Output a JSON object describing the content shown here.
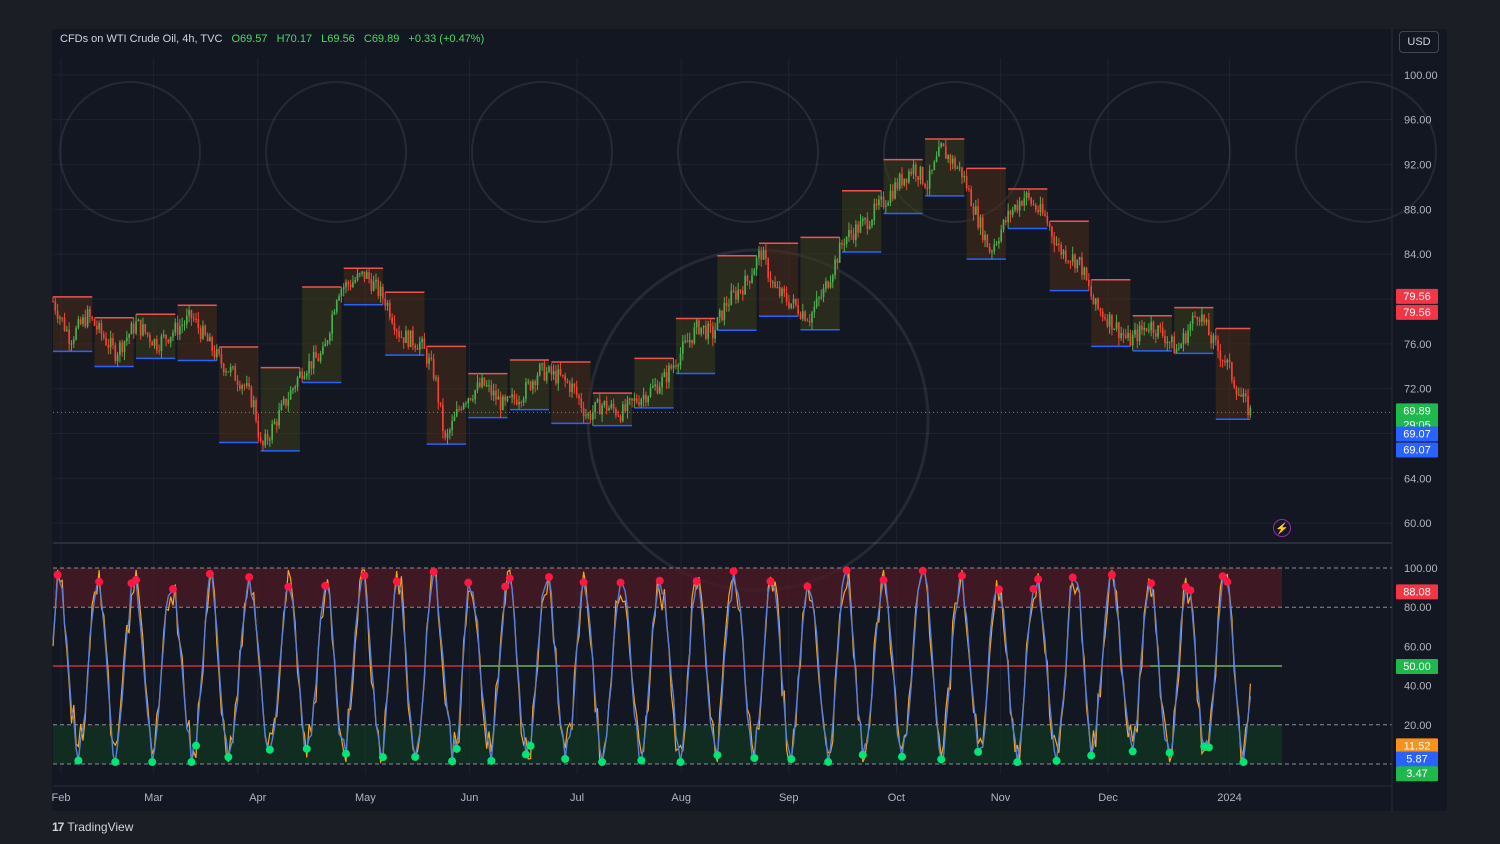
{
  "header": {
    "symbol": "CFDs on WTI Crude Oil, 4h, TVC",
    "open": "O69.57",
    "high": "H70.17",
    "low": "L69.56",
    "close": "C69.89",
    "change": "+0.33 (+0.47%)"
  },
  "currency": "USD",
  "brand": "TradingView",
  "colors": {
    "background": "#131722",
    "frame": "#1b1e25",
    "up_candle": "#26a69a",
    "down_candle": "#ef5350",
    "resistance": "#ef5350",
    "support": "#2962ff",
    "oscillator_fast": "#f5a623",
    "oscillator_slow": "#5b7fd6",
    "overbought_dot": "#ff1744",
    "oversold_dot": "#00e676",
    "overbought_zone": "#4a1a24",
    "oversold_zone": "#123322",
    "midline": "#d32f2f",
    "midline_green": "#4caf50"
  },
  "chart_data": [
    {
      "type": "candlestick",
      "price_axis": {
        "ticks": [
          "100.00",
          "96.00",
          "92.00",
          "88.00",
          "84.00",
          "80.00",
          "76.00",
          "72.00",
          "68.00",
          "64.00",
          "60.00"
        ],
        "range": [
          58.5,
          101.5
        ]
      },
      "time_axis": {
        "labels": [
          "Feb",
          "Mar",
          "Apr",
          "May",
          "Jun",
          "Jul",
          "Aug",
          "Sep",
          "Oct",
          "Nov",
          "Dec",
          "2024"
        ]
      },
      "path": [
        [
          0,
          79.8
        ],
        [
          5,
          76.5
        ],
        [
          10,
          78.5
        ],
        [
          18,
          75.2
        ],
        [
          24,
          77.8
        ],
        [
          30,
          76.0
        ],
        [
          40,
          78.4
        ],
        [
          48,
          74.5
        ],
        [
          55,
          72.4
        ],
        [
          58,
          70.5
        ],
        [
          60,
          66.5
        ],
        [
          64,
          69.0
        ],
        [
          72,
          73.8
        ],
        [
          78,
          75.1
        ],
        [
          82,
          80.8
        ],
        [
          90,
          82.2
        ],
        [
          96,
          79.8
        ],
        [
          100,
          76.8
        ],
        [
          106,
          76.0
        ],
        [
          110,
          73.2
        ],
        [
          113,
          67.2
        ],
        [
          118,
          71.0
        ],
        [
          124,
          72.4
        ],
        [
          130,
          70.4
        ],
        [
          136,
          71.8
        ],
        [
          140,
          73.6
        ],
        [
          146,
          73.0
        ],
        [
          150,
          72.0
        ],
        [
          154,
          69.5
        ],
        [
          158,
          70.6
        ],
        [
          164,
          69.8
        ],
        [
          168,
          71.0
        ],
        [
          172,
          71.8
        ],
        [
          176,
          72.8
        ],
        [
          180,
          74.8
        ],
        [
          186,
          77.6
        ],
        [
          190,
          76.8
        ],
        [
          194,
          79.6
        ],
        [
          200,
          81.6
        ],
        [
          204,
          84.2
        ],
        [
          208,
          80.8
        ],
        [
          212,
          79.8
        ],
        [
          218,
          78.4
        ],
        [
          222,
          80.6
        ],
        [
          228,
          85.4
        ],
        [
          234,
          86.8
        ],
        [
          238,
          88.2
        ],
        [
          244,
          90.5
        ],
        [
          248,
          91.8
        ],
        [
          252,
          90.2
        ],
        [
          256,
          93.4
        ],
        [
          262,
          91.2
        ],
        [
          266,
          87.6
        ],
        [
          270,
          84.3
        ],
        [
          276,
          87.8
        ],
        [
          280,
          89.2
        ],
        [
          286,
          87.2
        ],
        [
          290,
          84.4
        ],
        [
          296,
          83.2
        ],
        [
          300,
          79.4
        ],
        [
          305,
          78.0
        ],
        [
          310,
          76.2
        ],
        [
          316,
          77.8
        ],
        [
          320,
          76.8
        ],
        [
          324,
          75.4
        ],
        [
          330,
          79.0
        ],
        [
          334,
          76.2
        ],
        [
          338,
          74.4
        ],
        [
          342,
          71.4
        ],
        [
          345,
          69.89
        ]
      ],
      "series": [
        {
          "name": "",
          "values": []
        }
      ],
      "last_price": "69.89",
      "countdown": "29:05"
    },
    {
      "type": "line",
      "y_axis": {
        "ticks": [
          "100.00",
          "80.00",
          "60.00",
          "40.00",
          "20.00"
        ],
        "range": [
          0,
          100
        ]
      },
      "levels": {
        "upper": 100,
        "overbought": 80,
        "mid": 50,
        "oversold": 20,
        "lower": 0
      }
    }
  ],
  "price_labels": [
    {
      "text": "79.56",
      "bg": "#f23645"
    },
    {
      "text": "79.56",
      "bg": "#f23645"
    },
    {
      "text": "69.89",
      "bg": "#1fb84c"
    },
    {
      "text": "29:05",
      "bg": "#1fb84c"
    },
    {
      "text": "69.07",
      "bg": "#2962ff"
    },
    {
      "text": "69.07",
      "bg": "#2962ff"
    }
  ],
  "osc_labels": [
    {
      "text": "88.08",
      "bg": "#f23645"
    },
    {
      "text": "50.00",
      "bg": "#1fb84c"
    },
    {
      "text": "11.52",
      "bg": "#f7931a"
    },
    {
      "text": "5.87",
      "bg": "#2962ff"
    },
    {
      "text": "3.47",
      "bg": "#1fb84c"
    }
  ],
  "icons": {
    "alert": "lightning-icon",
    "logo": "tradingview-logo-icon"
  }
}
